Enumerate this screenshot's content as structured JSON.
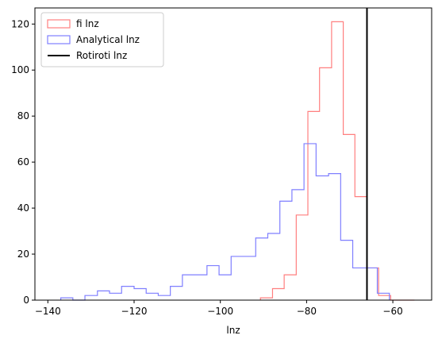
{
  "chart_data": {
    "type": "histogram",
    "xlabel": "lnz",
    "ylabel": "",
    "xlim": [
      -143,
      -51
    ],
    "ylim": [
      0,
      127
    ],
    "xticks": [
      -140,
      -120,
      -100,
      -80,
      -60
    ],
    "xtick_labels": [
      "−140",
      "−120",
      "−100",
      "−80",
      "−60"
    ],
    "yticks": [
      0,
      20,
      40,
      60,
      80,
      100,
      120
    ],
    "ytick_labels": [
      "0",
      "20",
      "40",
      "60",
      "80",
      "100",
      "120"
    ],
    "legend_position": "top-left",
    "grid": false,
    "series": [
      {
        "name": "fi lnz",
        "style": "step",
        "color": "#ff7f7f",
        "edges": [
          -90.7,
          -87.9,
          -85.2,
          -82.4,
          -79.7,
          -77.0,
          -74.2,
          -71.5,
          -68.8,
          -66.0,
          -63.3,
          -60.5,
          -57.8,
          -55.0
        ],
        "counts": [
          1,
          5,
          11,
          37,
          82,
          101,
          121,
          72,
          45,
          14,
          2,
          0,
          0
        ]
      },
      {
        "name": "Analytical lnz",
        "style": "step",
        "color": "#7f7fff",
        "edges": [
          -137.0,
          -134.2,
          -131.4,
          -128.5,
          -125.7,
          -122.9,
          -120.0,
          -117.2,
          -114.4,
          -111.6,
          -108.8,
          -106.0,
          -103.1,
          -100.3,
          -97.5,
          -94.7,
          -91.8,
          -89.0,
          -86.2,
          -83.4,
          -80.6,
          -77.8,
          -74.9,
          -72.1,
          -69.3,
          -66.5,
          -63.6,
          -60.8
        ],
        "counts": [
          1,
          0,
          2,
          4,
          3,
          6,
          5,
          3,
          2,
          6,
          11,
          11,
          15,
          11,
          19,
          19,
          27,
          29,
          43,
          48,
          68,
          54,
          55,
          26,
          14,
          14,
          3
        ]
      },
      {
        "name": "Rotiroti lnz",
        "style": "vline",
        "color": "#000000",
        "x": -66.0
      }
    ]
  }
}
